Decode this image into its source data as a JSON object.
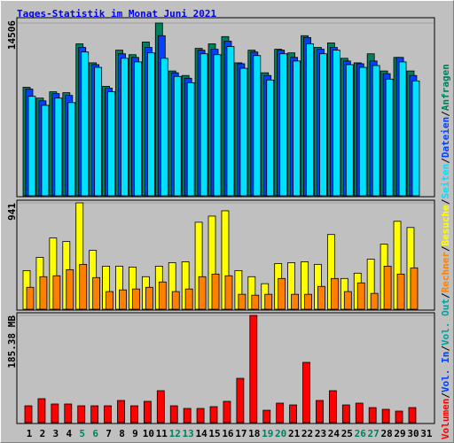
{
  "title": "Tages-Statistik im Monat Juni 2021",
  "extra_legend": [
    {
      "name": "Vol. In",
      "color": "#0040ff"
    },
    {
      "name": "Vol. Out",
      "color": "#00a0a0"
    }
  ],
  "chart_data": [
    {
      "type": "bar",
      "ylim": [
        0,
        14506
      ],
      "yticks": [
        14506
      ],
      "series": [
        {
          "name": "Anfragen",
          "color": "#00805c",
          "values": [
            9114,
            8203,
            8734,
            8658,
            12760,
            11165,
            9190,
            12228,
            11848,
            12911,
            14506,
            10481,
            10101,
            12380,
            12760,
            13367,
            11165,
            12228,
            10329,
            12304,
            12000,
            13443,
            12456,
            12835,
            11544,
            11165,
            11924,
            10481,
            11620,
            10481,
            null
          ]
        },
        {
          "name": "Dateien",
          "color": "#0040ff",
          "values": [
            8962,
            7975,
            8582,
            8430,
            12456,
            11013,
            9038,
            11924,
            11620,
            12456,
            13443,
            10329,
            9874,
            12228,
            12304,
            12987,
            11089,
            12076,
            10101,
            12228,
            11620,
            13291,
            12304,
            12456,
            11317,
            11089,
            11317,
            10253,
            11620,
            10101,
            null
          ]
        },
        {
          "name": "Seiten",
          "color": "#00e0ff",
          "values": [
            8355,
            7595,
            8203,
            7823,
            12076,
            10785,
            8734,
            11544,
            11241,
            12000,
            11544,
            10025,
            9494,
            11924,
            11848,
            12532,
            10709,
            11772,
            9722,
            11924,
            11317,
            12760,
            11924,
            12228,
            11013,
            10785,
            10937,
            9798,
            11241,
            9646,
            null
          ]
        }
      ]
    },
    {
      "type": "bar",
      "ylim": [
        0,
        941
      ],
      "yticks": [
        941
      ],
      "series": [
        {
          "name": "Besuche",
          "color": "#ffff00",
          "values": [
            342,
            459,
            630,
            599,
            941,
            521,
            381,
            381,
            373,
            288,
            381,
            412,
            420,
            770,
            824,
            871,
            342,
            288,
            226,
            404,
            412,
            420,
            397,
            661,
            272,
            319,
            443,
            575,
            778,
            723,
            null
          ]
        },
        {
          "name": "Rechner",
          "color": "#ff8000",
          "values": [
            194,
            288,
            296,
            350,
            397,
            280,
            156,
            171,
            179,
            194,
            241,
            156,
            179,
            288,
            311,
            296,
            132,
            124,
            132,
            272,
            132,
            132,
            202,
            272,
            156,
            233,
            140,
            381,
            311,
            366,
            null
          ]
        }
      ]
    },
    {
      "type": "bar",
      "ylim": [
        0,
        185.38
      ],
      "yticks": [
        {
          "value": 185.38,
          "label": "185.38 MB"
        }
      ],
      "categories": [
        "1",
        "2",
        "3",
        "4",
        "5",
        "6",
        "7",
        "8",
        "9",
        "10",
        "11",
        "12",
        "13",
        "14",
        "15",
        "16",
        "17",
        "18",
        "19",
        "20",
        "21",
        "22",
        "23",
        "24",
        "25",
        "26",
        "27",
        "28",
        "29",
        "30",
        "31"
      ],
      "category_colors": [
        "#000",
        "#000",
        "#000",
        "#000",
        "#008060",
        "#008060",
        "#000",
        "#000",
        "#000",
        "#000",
        "#000",
        "#008060",
        "#008060",
        "#000",
        "#000",
        "#000",
        "#000",
        "#000",
        "#008060",
        "#008060",
        "#000",
        "#000",
        "#000",
        "#000",
        "#000",
        "#008060",
        "#008060",
        "#000",
        "#000",
        "#000",
        "#000"
      ],
      "series": [
        {
          "name": "Volumen",
          "color": "#ff0000",
          "values": [
            29.1,
            41.4,
            32.2,
            32.2,
            29.1,
            29.1,
            29.1,
            38.3,
            29.1,
            36.8,
            55.2,
            29.1,
            24.5,
            24.5,
            27.6,
            36.8,
            76.6,
            185.38,
            21.4,
            33.7,
            30.6,
            104.2,
            38.3,
            55.2,
            30.6,
            33.7,
            26.0,
            23.0,
            19.9,
            26.0,
            null
          ]
        }
      ]
    }
  ]
}
